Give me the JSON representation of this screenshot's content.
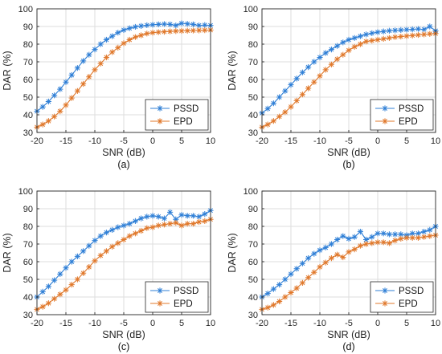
{
  "colors": {
    "pssd": "#2f7fd6",
    "epd": "#e0782b",
    "grid": "#dedede",
    "axis": "#262626"
  },
  "chart_data": [
    {
      "type": "line",
      "caption": "(a)",
      "xlabel": "SNR (dB)",
      "ylabel": "DAR (%)",
      "xlim": [
        -20,
        10
      ],
      "ylim": [
        30,
        100
      ],
      "xticks": [
        "-20",
        "-15",
        "-10",
        "-5",
        "0",
        "5",
        "10"
      ],
      "yticks": [
        "30",
        "40",
        "50",
        "60",
        "70",
        "80",
        "90",
        "100"
      ],
      "grid": true,
      "legend_position": "bottom-right",
      "x": [
        -20,
        -19,
        -18,
        -17,
        -16,
        -15,
        -14,
        -13,
        -12,
        -11,
        -10,
        -9,
        -8,
        -7,
        -6,
        -5,
        -4,
        -3,
        -2,
        -1,
        0,
        1,
        2,
        3,
        4,
        5,
        6,
        7,
        8,
        9,
        10
      ],
      "series": [
        {
          "name": "PSSD",
          "values": [
            42,
            44.5,
            47.5,
            51,
            54.5,
            58.5,
            62.5,
            66.5,
            70.5,
            74,
            77,
            80,
            82.5,
            84.5,
            86.5,
            88,
            89,
            89.8,
            90.3,
            90.7,
            91,
            91.2,
            91.4,
            91.2,
            90.6,
            91.8,
            91.5,
            91.2,
            90.6,
            90.8,
            90.6
          ]
        },
        {
          "name": "EPD",
          "values": [
            33,
            34.5,
            36.5,
            39,
            42,
            45.5,
            49.5,
            53.5,
            57.5,
            61.5,
            65.5,
            69,
            72.5,
            75.5,
            78,
            80.5,
            82.5,
            84,
            85,
            86,
            86.5,
            86.8,
            87,
            87.2,
            87.4,
            87.5,
            87.6,
            87.7,
            87.8,
            87.9,
            88
          ]
        }
      ]
    },
    {
      "type": "line",
      "caption": "(b)",
      "xlabel": "SNR (dB)",
      "ylabel": "DAR (%)",
      "xlim": [
        -20,
        10
      ],
      "ylim": [
        30,
        100
      ],
      "xticks": [
        "-20",
        "-15",
        "-10",
        "-5",
        "0",
        "5",
        "10"
      ],
      "yticks": [
        "30",
        "40",
        "50",
        "60",
        "70",
        "80",
        "90",
        "100"
      ],
      "grid": true,
      "legend_position": "bottom-right",
      "x": [
        -20,
        -19,
        -18,
        -17,
        -16,
        -15,
        -14,
        -13,
        -12,
        -11,
        -10,
        -9,
        -8,
        -7,
        -6,
        -5,
        -4,
        -3,
        -2,
        -1,
        0,
        1,
        2,
        3,
        4,
        5,
        6,
        7,
        8,
        9,
        10
      ],
      "series": [
        {
          "name": "PSSD",
          "values": [
            41,
            43.5,
            46.5,
            50,
            53.5,
            57,
            60.5,
            64,
            67,
            70,
            72.5,
            75,
            77,
            79,
            81,
            82.5,
            83.5,
            84.5,
            85.5,
            86.2,
            86.8,
            87.2,
            87.6,
            87.8,
            88,
            88.2,
            88.4,
            88.6,
            88.3,
            90,
            87.5
          ]
        },
        {
          "name": "EPD",
          "values": [
            33,
            34.5,
            36.5,
            39,
            41.5,
            44.5,
            48,
            51.5,
            55,
            58.5,
            62,
            65.5,
            68.5,
            71.5,
            74,
            76.5,
            78.5,
            80,
            81.5,
            82,
            82.5,
            83,
            83.5,
            84,
            84.3,
            84.6,
            84.9,
            85.2,
            85.5,
            85.8,
            86
          ]
        }
      ]
    },
    {
      "type": "line",
      "caption": "(c)",
      "xlabel": "SNR (dB)",
      "ylabel": "DAR (%)",
      "xlim": [
        -20,
        10
      ],
      "ylim": [
        30,
        100
      ],
      "xticks": [
        "-20",
        "-15",
        "-10",
        "-5",
        "0",
        "5",
        "10"
      ],
      "yticks": [
        "30",
        "40",
        "50",
        "60",
        "70",
        "80",
        "90",
        "100"
      ],
      "grid": true,
      "legend_position": "bottom-right",
      "x": [
        -20,
        -19,
        -18,
        -17,
        -16,
        -15,
        -14,
        -13,
        -12,
        -11,
        -10,
        -9,
        -8,
        -7,
        -6,
        -5,
        -4,
        -3,
        -2,
        -1,
        0,
        1,
        2,
        3,
        4,
        5,
        6,
        7,
        8,
        9,
        10
      ],
      "series": [
        {
          "name": "PSSD",
          "values": [
            40,
            43,
            46,
            49.5,
            53,
            56.5,
            60,
            63,
            66,
            69,
            72,
            74.5,
            76.5,
            78,
            79.5,
            80.5,
            81.5,
            83,
            84.5,
            85.5,
            86,
            85.5,
            84.5,
            88,
            84,
            86.5,
            86,
            86,
            85.5,
            87,
            89
          ]
        },
        {
          "name": "EPD",
          "values": [
            33,
            34.5,
            36.5,
            39,
            41.5,
            44,
            47,
            50,
            53.5,
            57,
            60.5,
            63.5,
            66,
            68.5,
            70.5,
            72.5,
            74.5,
            76,
            77.5,
            79,
            79.5,
            80.5,
            81,
            81.5,
            82,
            80.5,
            81.5,
            81.5,
            82.5,
            83,
            84
          ]
        }
      ]
    },
    {
      "type": "line",
      "caption": "(d)",
      "xlabel": "SNR (dB)",
      "ylabel": "DAR (%)",
      "xlim": [
        -20,
        10
      ],
      "ylim": [
        30,
        100
      ],
      "xticks": [
        "-20",
        "-15",
        "-10",
        "-5",
        "0",
        "5",
        "10"
      ],
      "yticks": [
        "30",
        "40",
        "50",
        "60",
        "70",
        "80",
        "90",
        "100"
      ],
      "grid": true,
      "legend_position": "bottom-right",
      "x": [
        -20,
        -19,
        -18,
        -17,
        -16,
        -15,
        -14,
        -13,
        -12,
        -11,
        -10,
        -9,
        -8,
        -7,
        -6,
        -5,
        -4,
        -3,
        -2,
        -1,
        0,
        1,
        2,
        3,
        4,
        5,
        6,
        7,
        8,
        9,
        10
      ],
      "series": [
        {
          "name": "PSSD",
          "values": [
            40,
            42,
            44.5,
            47,
            50,
            53,
            56,
            59,
            62,
            64.5,
            66.5,
            68,
            70,
            72.5,
            74.5,
            73,
            74,
            77,
            72.5,
            74,
            76,
            76,
            75.5,
            75.5,
            75.5,
            75,
            76,
            76,
            77,
            78,
            80
          ]
        },
        {
          "name": "EPD",
          "values": [
            33,
            34,
            35.5,
            37.5,
            40,
            42.5,
            45,
            48,
            51,
            54,
            57,
            59.5,
            62,
            64,
            62.5,
            65.5,
            67,
            69,
            70,
            70.5,
            71,
            71,
            70.5,
            72,
            73,
            73.5,
            73.5,
            73.5,
            74,
            74.5,
            75
          ]
        }
      ]
    }
  ]
}
